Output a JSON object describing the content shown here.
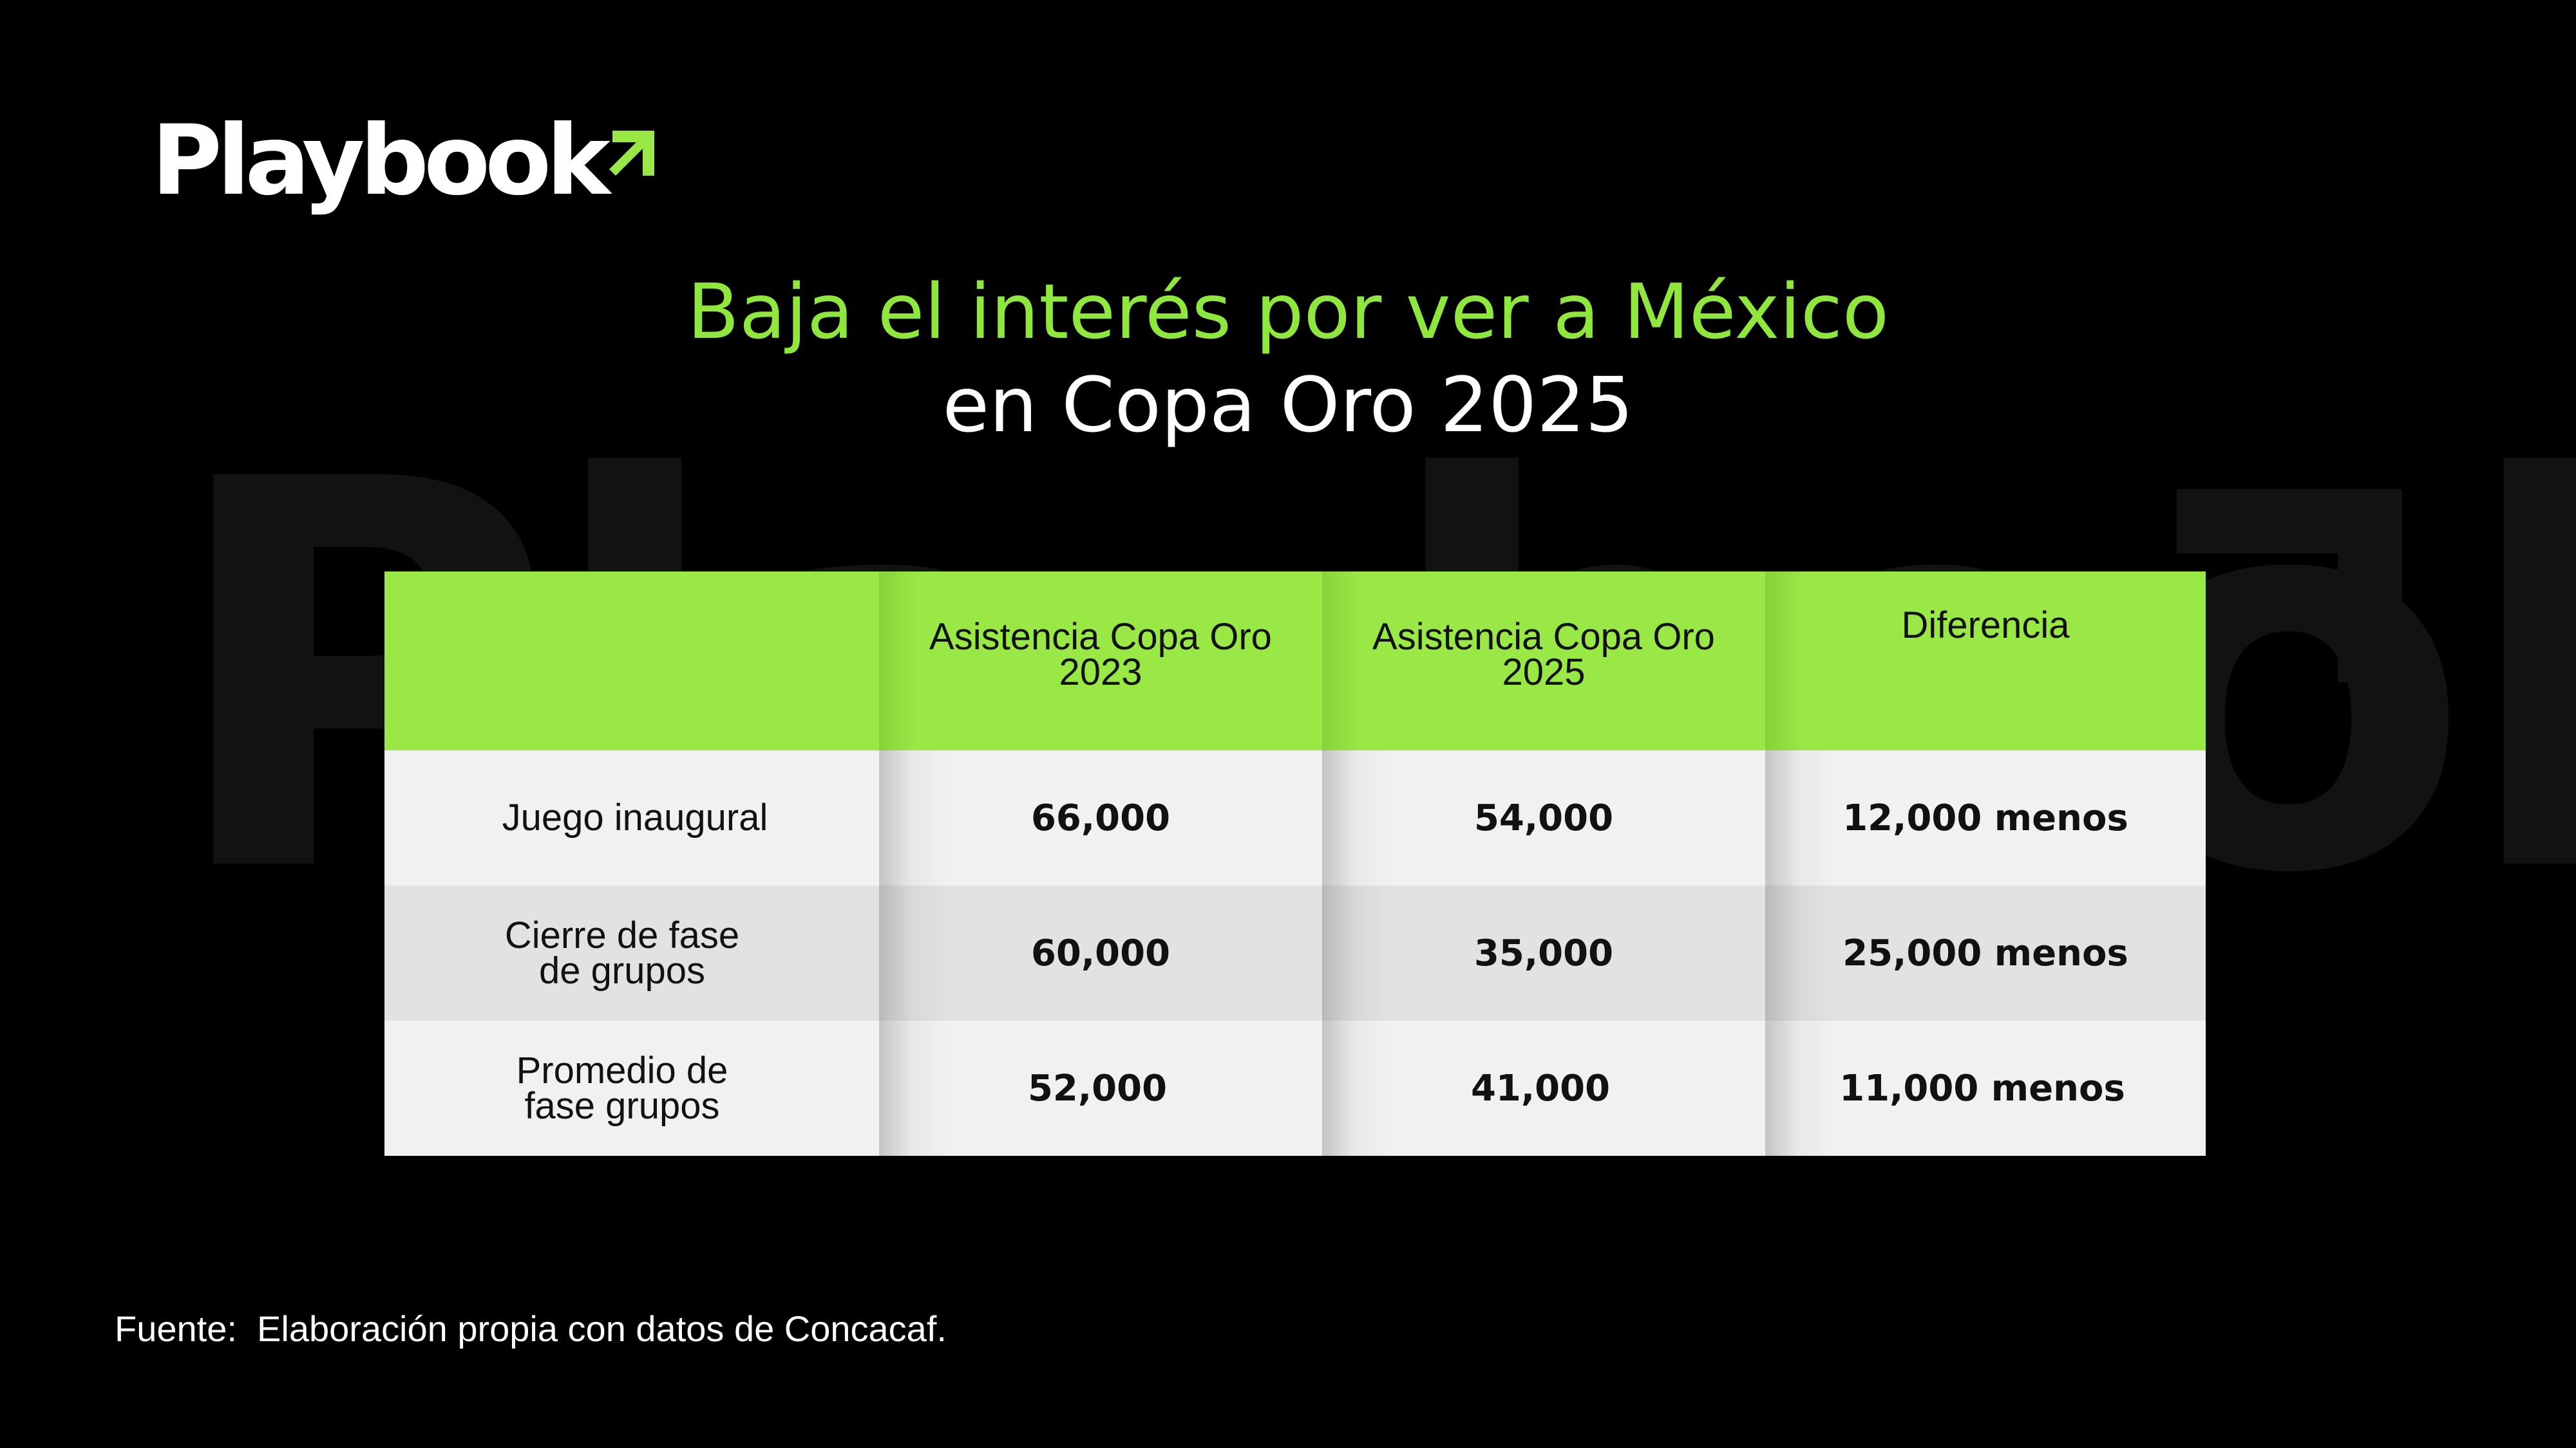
{
  "brand": {
    "logo_text": "Playbook",
    "accent_color": "#9ae846",
    "title_color": "#8fe63c",
    "background_color": "#000000"
  },
  "title": {
    "line1": "Baja el interés por ver a México",
    "line2": "en Copa Oro 2025"
  },
  "source": "Fuente:  Elaboración propia con datos de Concacaf.",
  "chart_data": {
    "type": "table",
    "columns": [
      "",
      "Asistencia Copa Oro 2023",
      "Asistencia Copa Oro 2025",
      "Diferencia"
    ],
    "rows": [
      [
        "Juego inaugural",
        "66,000",
        "54,000",
        "12,000 menos"
      ],
      [
        "Cierre de fase de grupos",
        "60,000",
        "35,000",
        "25,000 menos"
      ],
      [
        "Promedio de fase grupos",
        "52,000",
        "41,000",
        "11,000 menos"
      ]
    ]
  },
  "table": {
    "header": {
      "col1_line1": "Asistencia Copa Oro",
      "col1_line2": "2023",
      "col2_line1": "Asistencia Copa Oro",
      "col2_line2": "2025",
      "col3": "Diferencia"
    },
    "rows": [
      {
        "label_line1": "Juego inaugural",
        "label_line2": "",
        "v2023": "66,000",
        "v2025": "54,000",
        "diff": "12,000 menos"
      },
      {
        "label_line1": "Cierre de fase",
        "label_line2": "de grupos",
        "v2023": "60,000",
        "v2025": "35,000",
        "diff": "25,000 menos"
      },
      {
        "label_line1": "Promedio de",
        "label_line2": "fase grupos",
        "v2023": "52,000",
        "v2025": "41,000",
        "diff": "11,000 menos"
      }
    ]
  }
}
